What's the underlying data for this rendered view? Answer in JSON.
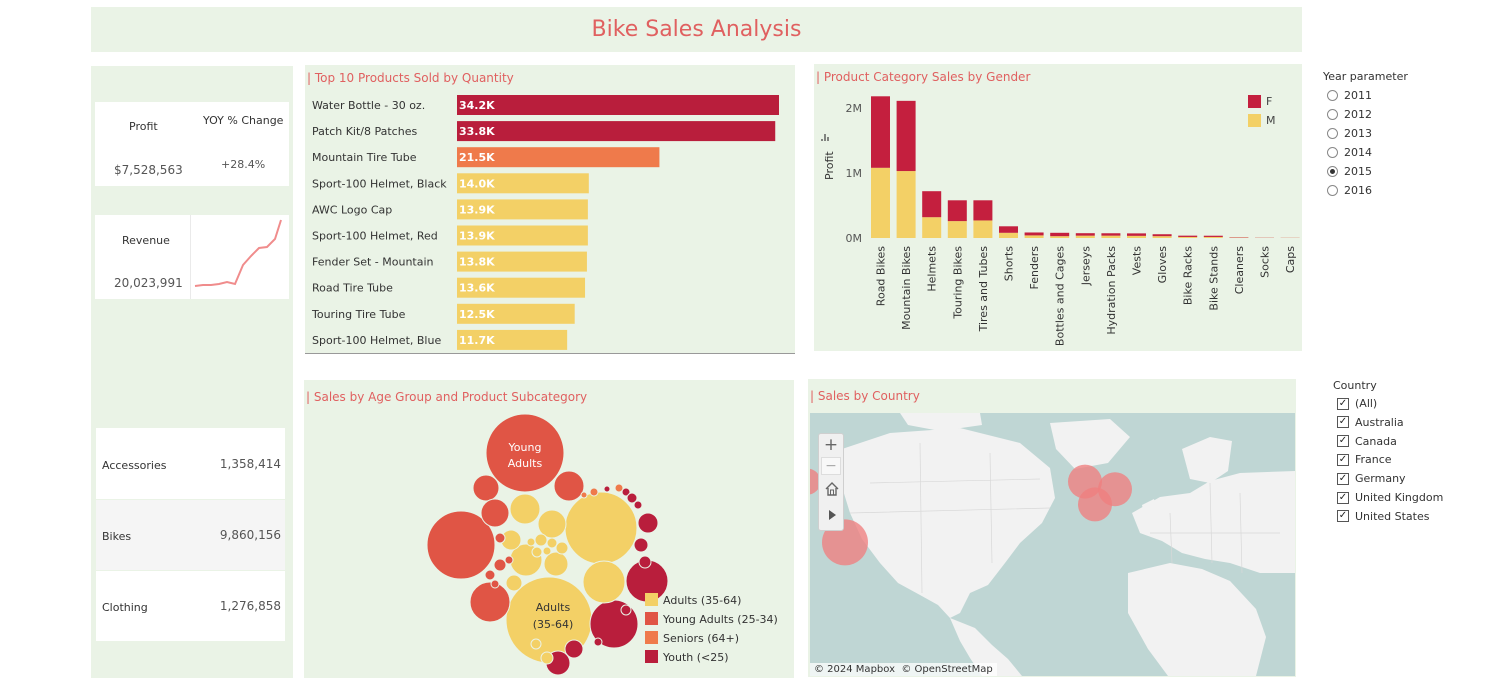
{
  "header": {
    "title": "Bike Sales Analysis"
  },
  "kpi": {
    "profit_label": "Profit",
    "yoy_label": "YOY % Change",
    "profit_value": "$7,528,563",
    "yoy_value": "+28.4%",
    "revenue_label": "Revenue",
    "revenue_value": "20,023,991",
    "sparkline_color": "#f08c8c"
  },
  "categories": [
    {
      "name": "Accessories",
      "value": "1,358,414"
    },
    {
      "name": "Bikes",
      "value": "9,860,156"
    },
    {
      "name": "Clothing",
      "value": "1,276,858"
    }
  ],
  "top_products": {
    "title": "Top 10 Products Sold by Quantity"
  },
  "gender_chart": {
    "title": "Product Category Sales by Gender"
  },
  "age_chart": {
    "title": "Sales by Age Group and Product Subcategory"
  },
  "map": {
    "title": "Sales by Country",
    "attribution": "© 2024 Mapbox  © OpenStreetMap",
    "zoom_in": "+",
    "zoom_out": "−",
    "home_icon": "home-icon",
    "play_icon": "play-icon"
  },
  "year_param": {
    "title": "Year parameter",
    "options": [
      "2011",
      "2012",
      "2013",
      "2014",
      "2015",
      "2016"
    ],
    "selected": "2015"
  },
  "country_filter": {
    "title": "Country",
    "options": [
      "(All)",
      "Australia",
      "Canada",
      "France",
      "Germany",
      "United Kingdom",
      "United States"
    ]
  },
  "colors": {
    "panel_bg": "#eaf3e6",
    "title_red": "#e06060",
    "youth": "#b91e3c",
    "young_adults": "#e05545",
    "seniors": "#ef7a4b",
    "adults": "#f3d066",
    "map_water": "#bfd6d4",
    "map_land": "#f2f2f2",
    "map_bubble": "#f07f7f"
  },
  "chart_data": [
    {
      "type": "bar",
      "orientation": "horizontal",
      "title": "Top 10 Products Sold by Quantity",
      "categories": [
        "Water Bottle - 30 oz.",
        "Patch Kit/8 Patches",
        "Mountain Tire Tube",
        "Sport-100 Helmet, Black",
        "AWC Logo Cap",
        "Sport-100 Helmet, Red",
        "Fender Set - Mountain",
        "Road Tire Tube",
        "Touring Tire Tube",
        "Sport-100 Helmet, Blue"
      ],
      "values": [
        34.2,
        33.8,
        21.5,
        14.0,
        13.9,
        13.9,
        13.8,
        13.6,
        12.5,
        11.7
      ],
      "data_labels": [
        "34.2K",
        "33.8K",
        "21.5K",
        "14.0K",
        "13.9K",
        "13.9K",
        "13.8K",
        "13.6K",
        "12.5K",
        "11.7K"
      ],
      "bar_colors": [
        "#b91e3c",
        "#b91e3c",
        "#ef7a4b",
        "#f3d066",
        "#f3d066",
        "#f3d066",
        "#f3d066",
        "#f3d066",
        "#f3d066",
        "#f3d066"
      ]
    },
    {
      "type": "bar",
      "stacked": true,
      "title": "Product Category Sales by Gender",
      "ylabel": "Profit",
      "ylim": [
        0,
        2200000
      ],
      "yticks": [
        0,
        1000000,
        2000000
      ],
      "ytick_labels": [
        "0M",
        "1M",
        "2M"
      ],
      "categories": [
        "Road Bikes",
        "Mountain Bikes",
        "Helmets",
        "Touring Bikes",
        "Tires and Tubes",
        "Shorts",
        "Fenders",
        "Bottles and Cages",
        "Jerseys",
        "Hydration Packs",
        "Vests",
        "Gloves",
        "Bike Racks",
        "Bike Stands",
        "Cleaners",
        "Socks",
        "Caps"
      ],
      "series": [
        {
          "name": "F",
          "color": "#c41f3e",
          "values": [
            1100000,
            1080000,
            400000,
            320000,
            310000,
            100000,
            45000,
            52000,
            38000,
            37000,
            38000,
            30000,
            20000,
            19000,
            6000,
            3000,
            2000
          ]
        },
        {
          "name": "M",
          "color": "#f3d066",
          "values": [
            1080000,
            1030000,
            320000,
            260000,
            270000,
            80000,
            40000,
            28000,
            36000,
            36000,
            33000,
            28000,
            16000,
            16000,
            5000,
            2000,
            2000
          ]
        }
      ],
      "legend": "top-right"
    },
    {
      "type": "bubble",
      "title": "Sales by Age Group and Product Subcategory",
      "legend": [
        {
          "name": "Adults (35-64)",
          "color": "#f3d066"
        },
        {
          "name": "Young Adults (25-34)",
          "color": "#e05545"
        },
        {
          "name": "Seniors (64+)",
          "color": "#ef7a4b"
        },
        {
          "name": "Youth (<25)",
          "color": "#b91e3c"
        }
      ],
      "bubble_labels": [
        {
          "group": "Young Adults",
          "lines": [
            "Young",
            "Adults"
          ]
        },
        {
          "group": "Adults (35-64)",
          "lines": [
            "Adults",
            "(35-64)"
          ]
        }
      ]
    },
    {
      "type": "map",
      "title": "Sales by Country",
      "points": [
        {
          "place": "Canada",
          "lon": -113,
          "lat": 53,
          "size": "small"
        },
        {
          "place": "United States",
          "lon": -98,
          "lat": 37,
          "size": "large"
        },
        {
          "place": "United Kingdom",
          "lon": -2,
          "lat": 53,
          "size": "medium"
        },
        {
          "place": "France",
          "lon": 2,
          "lat": 47,
          "size": "medium"
        },
        {
          "place": "Germany",
          "lon": 10,
          "lat": 51,
          "size": "medium"
        }
      ]
    }
  ]
}
